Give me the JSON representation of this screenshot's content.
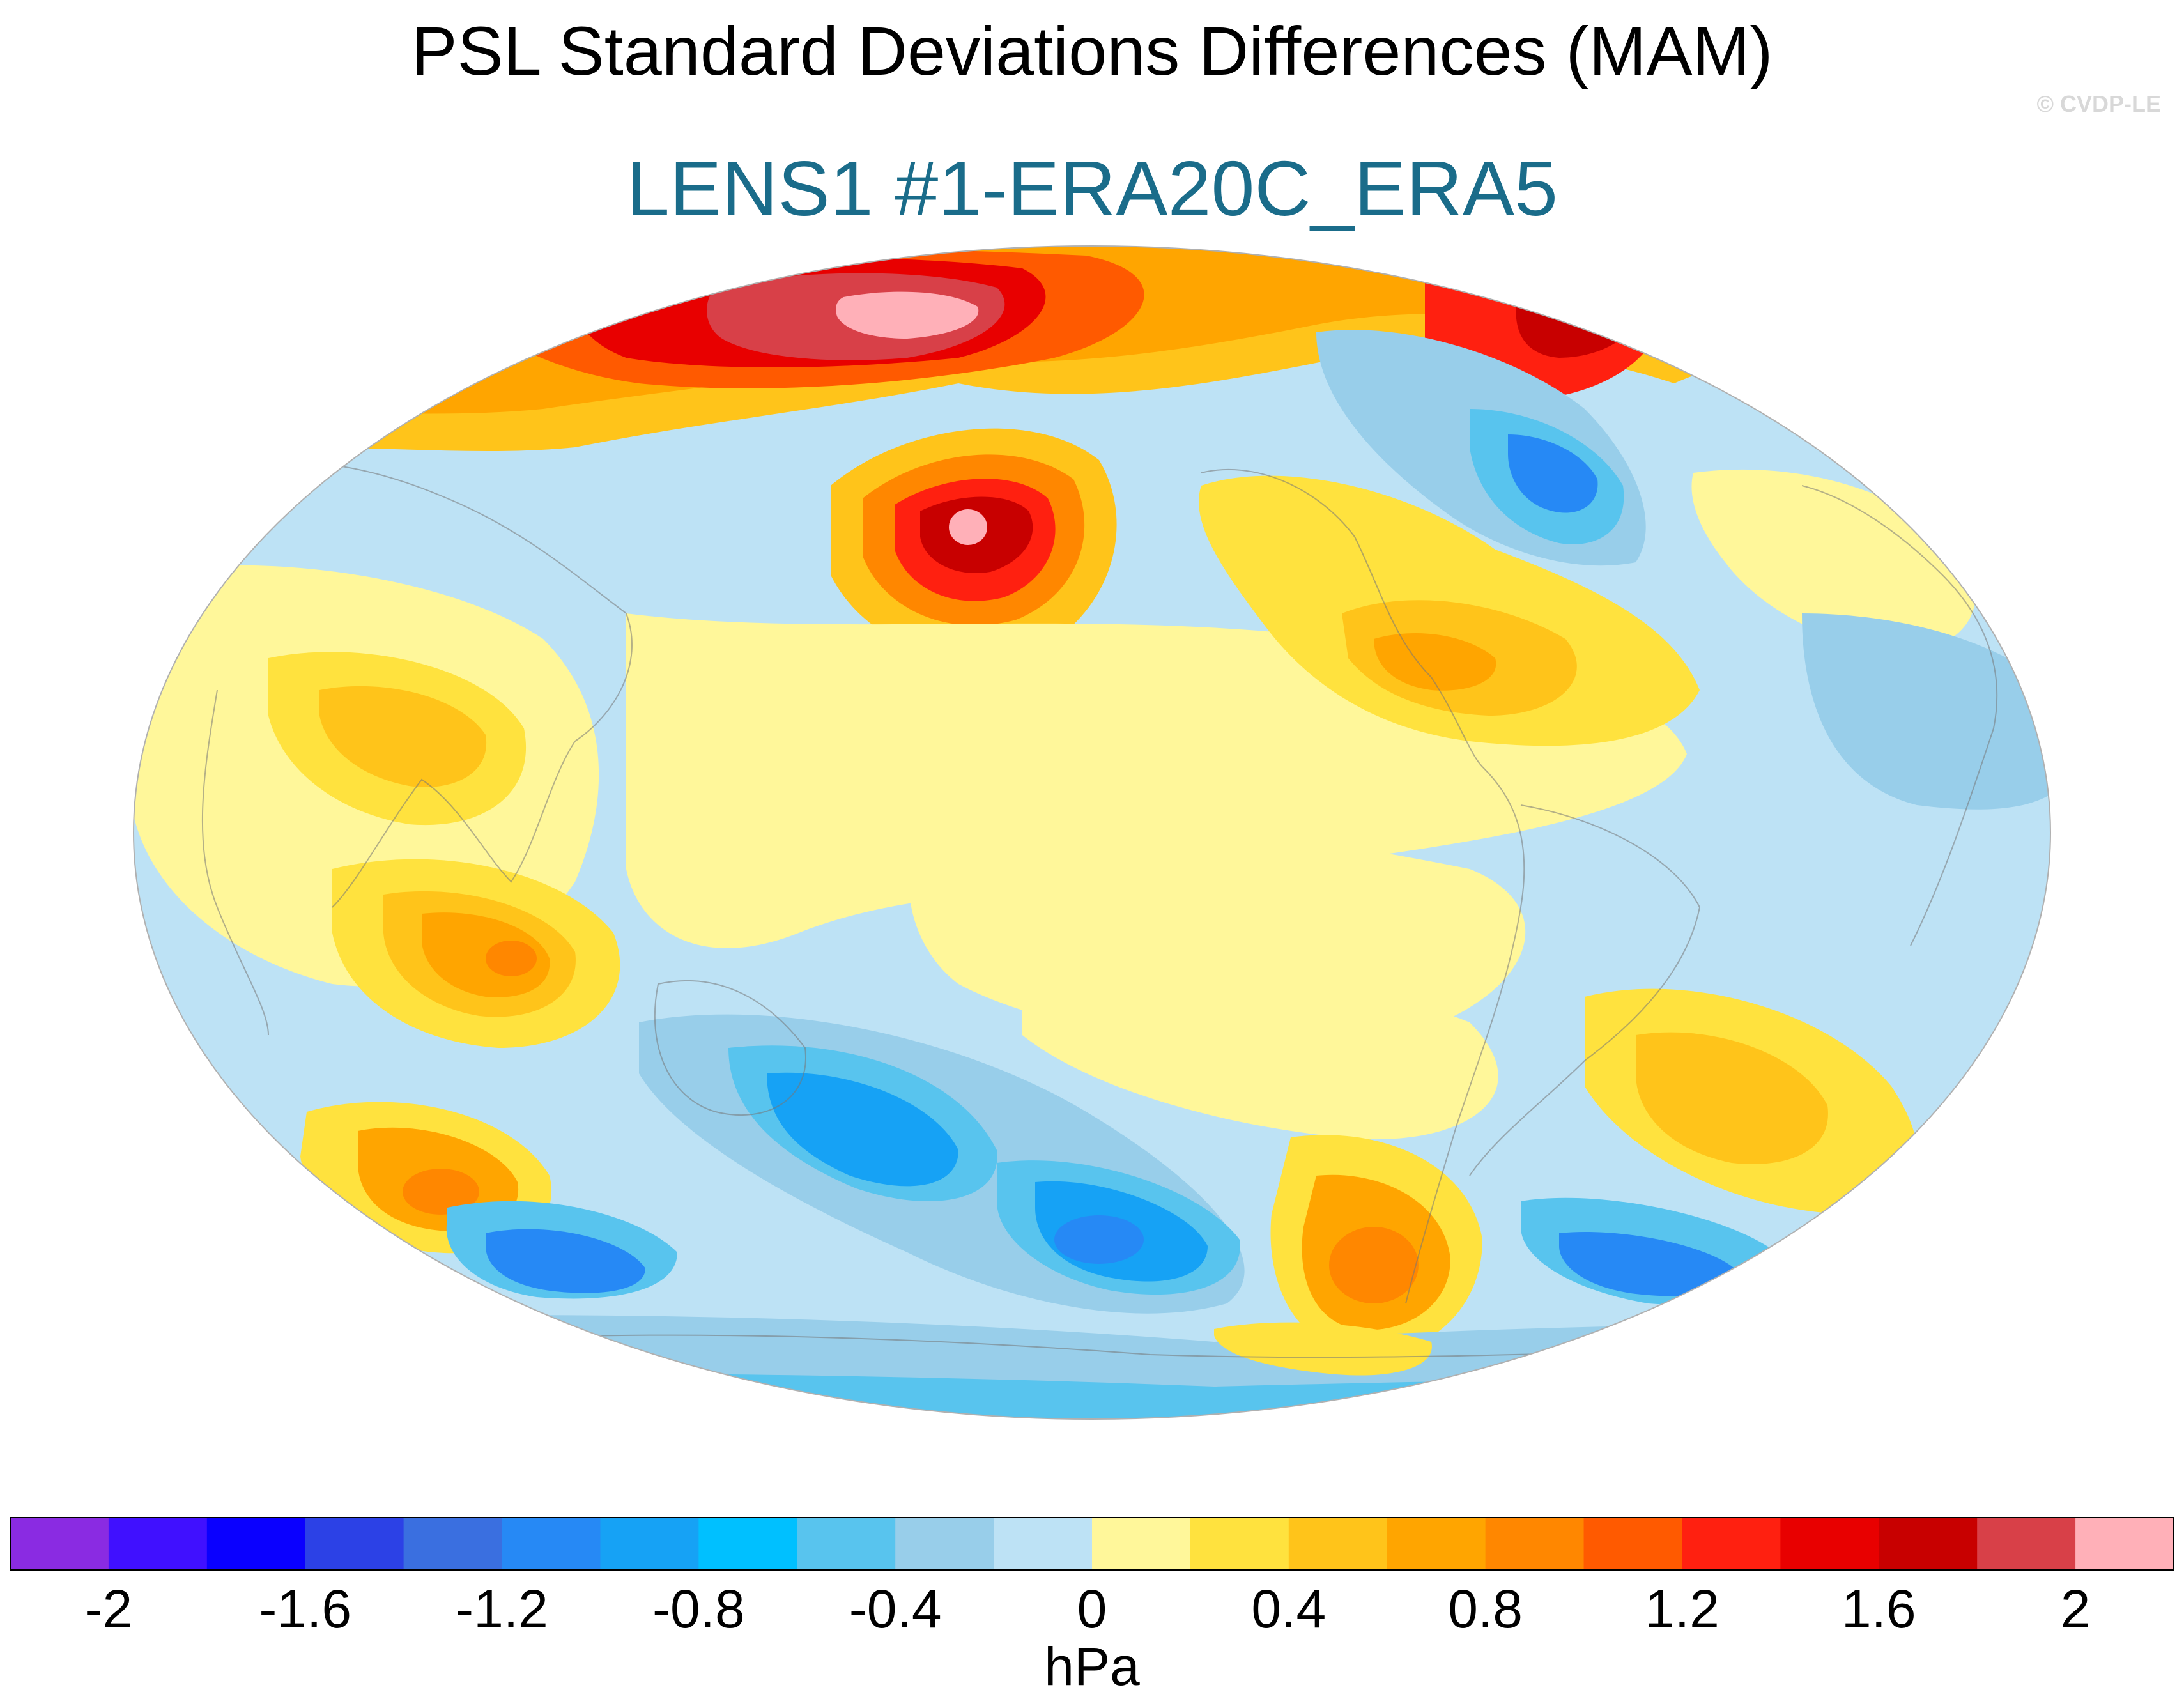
{
  "title": "PSL Standard Deviations Differences (MAM)",
  "subtitle": "LENS1 #1-ERA20C_ERA5",
  "copyright": "© CVDP-LE",
  "colorbar": {
    "units": "hPa",
    "colors": [
      "#8a2be2",
      "#4010ff",
      "#0a00ff",
      "#2c41e6",
      "#3a6fe0",
      "#2689f5",
      "#16a2f5",
      "#00c0ff",
      "#58c4ee",
      "#98ceea",
      "#bde2f5",
      "#fff79a",
      "#ffe23e",
      "#ffc41a",
      "#ffa500",
      "#ff8700",
      "#ff5a00",
      "#ff2010",
      "#e80000",
      "#c80000",
      "#d84048",
      "#ffb0b8"
    ],
    "tick_values": [
      -2,
      -1.6,
      -1.2,
      -0.8,
      -0.4,
      0,
      0.4,
      0.8,
      1.2,
      1.6,
      2
    ],
    "tick_labels": [
      "-2",
      "-1.6",
      "-1.2",
      "-0.8",
      "-0.4",
      "0",
      "0.4",
      "0.8",
      "1.2",
      "1.6",
      "2"
    ],
    "range": [
      -2.2,
      2.2
    ]
  },
  "map": {
    "projection": "Robinson-like global, centered on Pacific (~180°)",
    "background_value_color": "#bde2f5"
  }
}
